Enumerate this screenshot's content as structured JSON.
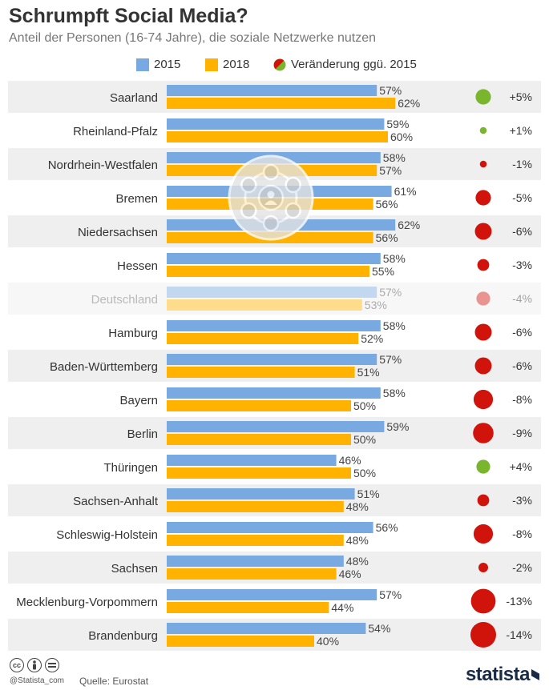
{
  "header": {
    "title": "Schrumpft Social Media?",
    "subtitle": "Anteil der Personen (16-74 Jahre), die soziale Netzwerke nutzen"
  },
  "legend": {
    "item_2015": "2015",
    "item_2018": "2018",
    "item_change": "Veränderung ggü. 2015"
  },
  "colors": {
    "bar_2015": "#78a9e0",
    "bar_2018": "#ffb300",
    "positive": "#7ab52e",
    "negative": "#d0140c",
    "row_stripe": "#efefef"
  },
  "chart_data": {
    "type": "bar",
    "orientation": "horizontal",
    "unit": "%",
    "categories": [
      "Saarland",
      "Rheinland-Pfalz",
      "Nordrhein-Westfalen",
      "Bremen",
      "Niedersachsen",
      "Hessen",
      "Deutschland",
      "Hamburg",
      "Baden-Württemberg",
      "Bayern",
      "Berlin",
      "Thüringen",
      "Sachsen-Anhalt",
      "Schleswig-Holstein",
      "Sachsen",
      "Mecklenburg-Vorpommern",
      "Brandenburg"
    ],
    "series": [
      {
        "name": "2015",
        "values": [
          57,
          59,
          58,
          61,
          62,
          58,
          57,
          58,
          57,
          58,
          59,
          46,
          51,
          56,
          48,
          57,
          54
        ]
      },
      {
        "name": "2018",
        "values": [
          62,
          60,
          57,
          56,
          56,
          55,
          53,
          52,
          51,
          50,
          50,
          50,
          48,
          48,
          46,
          44,
          40
        ]
      }
    ],
    "change": {
      "name": "Veränderung ggü. 2015",
      "values": [
        5,
        1,
        -1,
        -5,
        -6,
        -3,
        -4,
        -6,
        -6,
        -8,
        -9,
        4,
        -3,
        -8,
        -2,
        -13,
        -14
      ],
      "labels": [
        "+5%",
        "+1%",
        "-1%",
        "-5%",
        "-6%",
        "-3%",
        "-4%",
        "-6%",
        "-6%",
        "-8%",
        "-9%",
        "+4%",
        "-3%",
        "-8%",
        "-2%",
        "-13%",
        "-14%"
      ]
    },
    "highlight_category": "Deutschland",
    "xlim": [
      0,
      100
    ],
    "grid": false,
    "legend_position": "top"
  },
  "footer": {
    "handle": "@Statista_com",
    "source": "Quelle: Eurostat",
    "logo": "statista",
    "cc_icons": [
      "cc-icon",
      "by-icon",
      "nd-icon"
    ]
  }
}
